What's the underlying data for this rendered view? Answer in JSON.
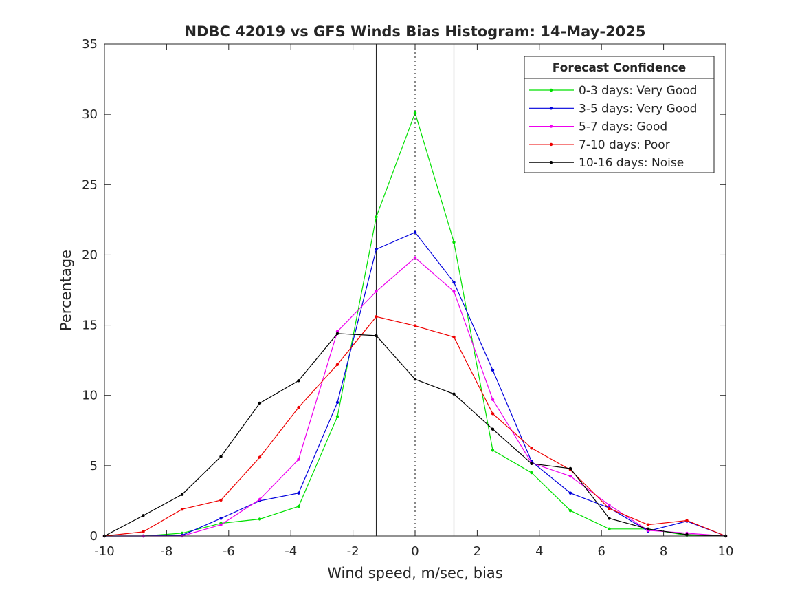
{
  "chart_data": {
    "type": "line",
    "title": "NDBC 42019 vs GFS Winds Bias Histogram: 14-May-2025",
    "xlabel": "Wind speed, m/sec, bias",
    "ylabel": "Percentage",
    "xlim": [
      -10,
      10
    ],
    "ylim": [
      0,
      35
    ],
    "xticks": [
      -10,
      -8,
      -6,
      -4,
      -2,
      0,
      2,
      4,
      6,
      8,
      10
    ],
    "yticks": [
      0,
      5,
      10,
      15,
      20,
      25,
      30,
      35
    ],
    "x": [
      -10,
      -8.75,
      -7.5,
      -6.25,
      -5,
      -3.75,
      -2.5,
      -1.25,
      0,
      1.25,
      2.5,
      3.75,
      5,
      6.25,
      7.5,
      8.75,
      10
    ],
    "vertical_lines": [
      {
        "x": -1.25,
        "style": "solid"
      },
      {
        "x": 0,
        "style": "dotted"
      },
      {
        "x": 1.25,
        "style": "solid"
      }
    ],
    "legend": {
      "title": "Forecast Confidence",
      "placement": "top-right"
    },
    "series": [
      {
        "name": "0-3 days: Very Good",
        "color": "#00e000",
        "values": [
          0,
          0,
          0.2,
          0.9,
          1.2,
          2.1,
          8.5,
          22.7,
          30.1,
          20.9,
          6.1,
          4.5,
          1.8,
          0.5,
          0.5,
          0.05,
          0
        ]
      },
      {
        "name": "3-5 days: Very Good",
        "color": "#0000dd",
        "values": [
          0,
          0,
          0.05,
          1.25,
          2.5,
          3.05,
          9.5,
          20.4,
          21.6,
          18.05,
          11.8,
          5.3,
          3.05,
          2.0,
          0.35,
          1.05,
          0
        ]
      },
      {
        "name": "5-7 days: Good",
        "color": "#ee00ee",
        "values": [
          0,
          0,
          0,
          0.8,
          2.6,
          5.45,
          14.55,
          17.4,
          19.8,
          17.4,
          9.7,
          5.2,
          4.25,
          2.2,
          0.4,
          0.2,
          0
        ]
      },
      {
        "name": "7-10 days: Poor",
        "color": "#ee0000",
        "values": [
          0,
          0.3,
          1.9,
          2.55,
          5.6,
          9.15,
          12.2,
          15.6,
          14.95,
          14.15,
          8.7,
          6.25,
          4.7,
          1.95,
          0.8,
          1.1,
          0
        ]
      },
      {
        "name": "10-16 days: Noise",
        "color": "#000000",
        "values": [
          0,
          1.45,
          2.95,
          5.65,
          9.45,
          11.05,
          14.4,
          14.25,
          11.15,
          10.1,
          7.6,
          5.15,
          4.8,
          1.25,
          0.5,
          0.1,
          0
        ]
      }
    ]
  }
}
